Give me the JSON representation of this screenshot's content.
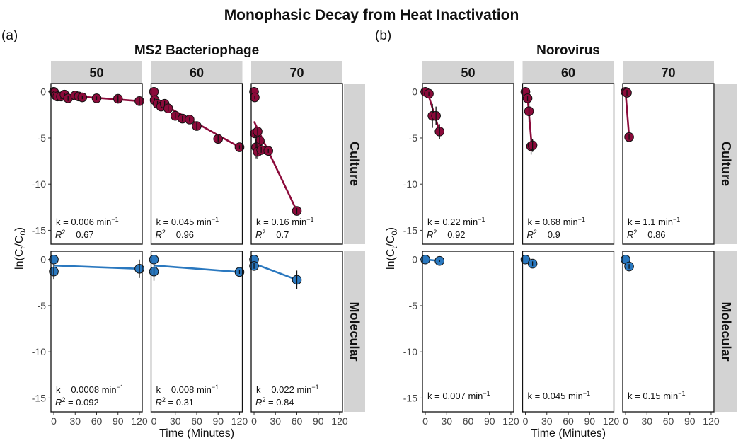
{
  "chart_data": {
    "type": "scatter",
    "title": "Monophasic Decay from Heat Inactivation",
    "xlabel": "Time (Minutes)",
    "ylabel": "ln(Ct/C0)",
    "ylabel_parts": {
      "pre": "ln(C",
      "sub1": "t",
      "mid": "/C",
      "sub2": "0",
      "post": ")"
    },
    "xlim": [
      -4,
      124
    ],
    "ylim": [
      -16.5,
      0.9
    ],
    "xticks": [
      0,
      30,
      60,
      90,
      120
    ],
    "yticks": [
      0,
      -5,
      -10,
      -15
    ],
    "grid": false,
    "colors": {
      "Culture": "#8b0a3a",
      "Molecular": "#2a78bf",
      "strip": "#d3d3d3"
    },
    "rows": [
      "Culture",
      "Molecular"
    ],
    "groups": [
      {
        "tag": "(a)",
        "name": "MS2 Bacteriophage",
        "temperatures": [
          "50",
          "60",
          "70"
        ],
        "panels": [
          {
            "temp": "50",
            "row": "Culture",
            "k": "k = 0.006 min",
            "r2": "0.67",
            "points": [
              [
                0,
                0
              ],
              [
                1,
                -0.1
              ],
              [
                3,
                -0.4
              ],
              [
                5,
                -0.5
              ],
              [
                10,
                -0.5
              ],
              [
                15,
                -0.3
              ],
              [
                20,
                -0.7
              ],
              [
                30,
                -0.4
              ],
              [
                35,
                -0.5
              ],
              [
                40,
                -0.6
              ],
              [
                60,
                -0.7
              ],
              [
                90,
                -0.75
              ],
              [
                120,
                -1.0
              ]
            ],
            "err": [
              0,
              0.1,
              0.2,
              0.3,
              0.3,
              0.2,
              0.3,
              0.3,
              0.3,
              0.2,
              0.2,
              0.4,
              0.4
            ],
            "fit": [
              [
                0,
                -0.3
              ],
              [
                120,
                -1.0
              ]
            ]
          },
          {
            "temp": "60",
            "row": "Culture",
            "k": "k = 0.045 min",
            "r2": "0.96",
            "points": [
              [
                0,
                0
              ],
              [
                1,
                -0.9
              ],
              [
                5,
                -1.3
              ],
              [
                10,
                -1.6
              ],
              [
                15,
                -1.3
              ],
              [
                20,
                -1.8
              ],
              [
                30,
                -2.6
              ],
              [
                40,
                -2.9
              ],
              [
                50,
                -3.0
              ],
              [
                60,
                -3.7
              ],
              [
                90,
                -5.1
              ],
              [
                120,
                -6.0
              ]
            ],
            "err": [
              0,
              0.2,
              0.3,
              0.2,
              0.3,
              0.3,
              0.3,
              0.3,
              0.2,
              0.4,
              0.4,
              0.2
            ],
            "fit": [
              [
                0,
                -0.8
              ],
              [
                120,
                -6.0
              ]
            ]
          },
          {
            "temp": "70",
            "row": "Culture",
            "k": "k = 0.16 min",
            "r2": "0.7",
            "points": [
              [
                0,
                0
              ],
              [
                1,
                -0.6
              ],
              [
                1,
                -4.5
              ],
              [
                5,
                -4.3
              ],
              [
                8,
                -5.3
              ],
              [
                3,
                -6.0
              ],
              [
                5,
                -6.5
              ],
              [
                10,
                -6.3
              ],
              [
                20,
                -6.4
              ],
              [
                60,
                -12.9
              ]
            ],
            "err": [
              0,
              0.2,
              0.4,
              0.4,
              0.5,
              1.2,
              0.8,
              0.3,
              0.2,
              0.3
            ],
            "fit": [
              [
                0,
                -3.2
              ],
              [
                60,
                -12.9
              ]
            ]
          },
          {
            "temp": "50",
            "row": "Molecular",
            "k": "k = 0.0008 min",
            "r2": "0.092",
            "points": [
              [
                0,
                0
              ],
              [
                0,
                -1.3
              ],
              [
                120,
                -1.0
              ]
            ],
            "err": [
              0,
              0.8,
              1.0
            ],
            "fit": [
              [
                0,
                -0.65
              ],
              [
                120,
                -1.0
              ]
            ]
          },
          {
            "temp": "60",
            "row": "Molecular",
            "k": "k = 0.008 min",
            "r2": "0.31",
            "points": [
              [
                0,
                0
              ],
              [
                0,
                -1.3
              ],
              [
                120,
                -1.35
              ]
            ],
            "err": [
              0,
              1.0,
              0.2
            ],
            "fit": [
              [
                0,
                -0.65
              ],
              [
                120,
                -1.35
              ]
            ]
          },
          {
            "temp": "70",
            "row": "Molecular",
            "k": "k = 0.022 min",
            "r2": "0.84",
            "points": [
              [
                0,
                0
              ],
              [
                0,
                -0.7
              ],
              [
                60,
                -2.2
              ]
            ],
            "err": [
              0,
              0.3,
              1.0
            ],
            "fit": [
              [
                0,
                -0.45
              ],
              [
                60,
                -2.2
              ]
            ]
          }
        ]
      },
      {
        "tag": "(b)",
        "name": "Norovirus",
        "temperatures": [
          "50",
          "60",
          "70"
        ],
        "panels": [
          {
            "temp": "50",
            "row": "Culture",
            "k": "k = 0.22 min",
            "r2": "0.92",
            "points": [
              [
                0,
                0
              ],
              [
                5,
                -0.2
              ],
              [
                10,
                -2.6
              ],
              [
                15,
                -2.6
              ],
              [
                20,
                -4.3
              ]
            ],
            "err": [
              0,
              0.2,
              1.3,
              1.0,
              0.8
            ],
            "fit": [
              [
                0,
                0
              ],
              [
                5,
                -0.5
              ],
              [
                20,
                -4.3
              ]
            ]
          },
          {
            "temp": "60",
            "row": "Culture",
            "k": "k = 0.68 min",
            "r2": "0.9",
            "points": [
              [
                0,
                0
              ],
              [
                3,
                -0.7
              ],
              [
                5,
                -2.1
              ],
              [
                8,
                -5.9
              ],
              [
                10,
                -5.8
              ]
            ],
            "err": [
              0,
              0.3,
              1.2,
              0.9,
              0.7
            ],
            "fit": [
              [
                0,
                0
              ],
              [
                3,
                -0.6
              ],
              [
                9,
                -6.0
              ]
            ]
          },
          {
            "temp": "70",
            "row": "Culture",
            "k": "k = 1.1 min",
            "r2": "0.86",
            "points": [
              [
                0,
                0
              ],
              [
                2,
                -0.1
              ],
              [
                5,
                -4.9
              ]
            ],
            "err": [
              0,
              0.3,
              0.3
            ],
            "fit": [
              [
                0,
                0
              ],
              [
                5,
                -4.9
              ]
            ]
          },
          {
            "temp": "50",
            "row": "Molecular",
            "k": "k = 0.007 min",
            "r2": null,
            "points": [
              [
                0,
                0
              ],
              [
                20,
                -0.15
              ]
            ],
            "err": [
              0,
              0.1
            ],
            "fit": [
              [
                0,
                0
              ],
              [
                20,
                -0.15
              ]
            ]
          },
          {
            "temp": "60",
            "row": "Molecular",
            "k": "k = 0.045 min",
            "r2": null,
            "points": [
              [
                0,
                0
              ],
              [
                10,
                -0.45
              ]
            ],
            "err": [
              0,
              0.25
            ],
            "fit": [
              [
                0,
                0
              ],
              [
                10,
                -0.45
              ]
            ]
          },
          {
            "temp": "70",
            "row": "Molecular",
            "k": "k = 0.15 min",
            "r2": null,
            "points": [
              [
                0,
                0
              ],
              [
                5,
                -0.75
              ]
            ],
            "err": [
              0,
              0.25
            ],
            "fit": [
              [
                0,
                0
              ],
              [
                5,
                -0.75
              ]
            ]
          }
        ]
      }
    ],
    "k_unit_superscript": "−1",
    "r2_prefix": "R",
    "r2_superscript": "2"
  }
}
